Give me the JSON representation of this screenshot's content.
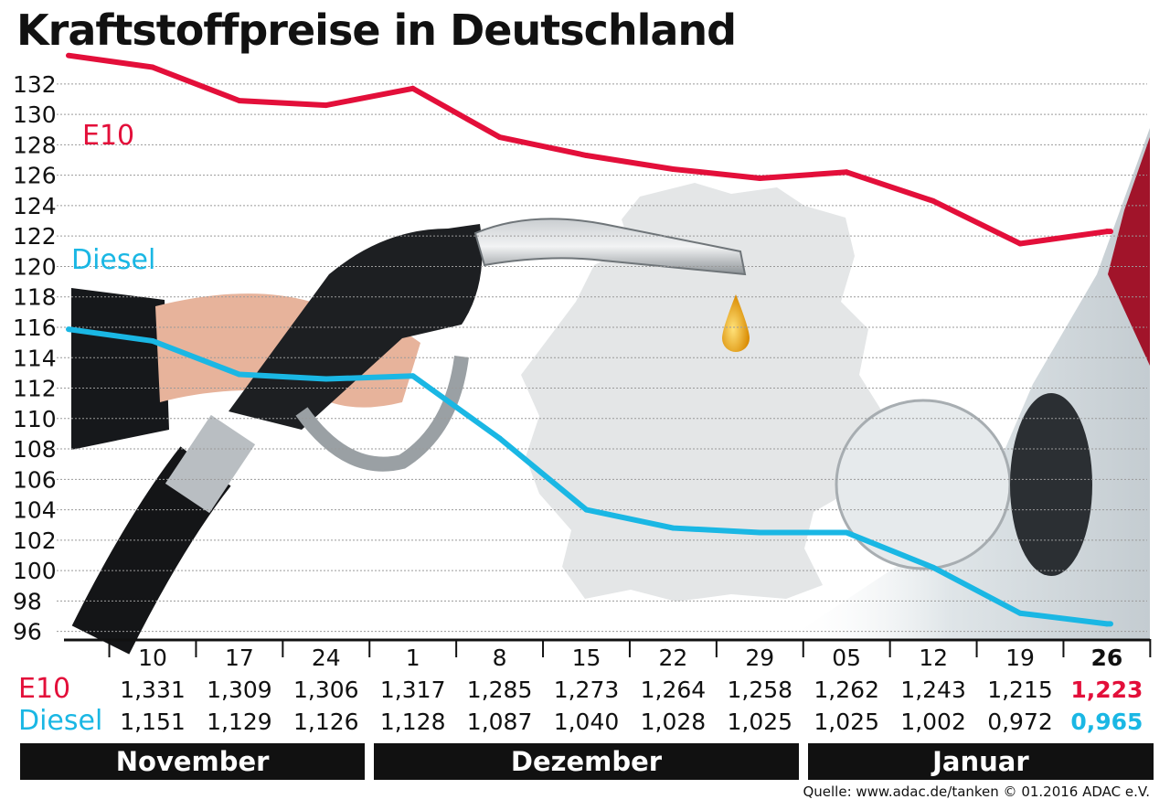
{
  "chart_data": {
    "type": "line",
    "title": "Kraftstoffpreise in Deutschland",
    "y_ticks": [
      "132",
      "130",
      "128",
      "126",
      "124",
      "122",
      "120",
      "118",
      "116",
      "114",
      "112",
      "110",
      "108",
      "106",
      "104",
      "102",
      "100",
      "98",
      "96"
    ],
    "ylim": [
      95.5,
      132.5
    ],
    "x": [
      "10",
      "17",
      "24",
      "1",
      "8",
      "15",
      "22",
      "29",
      "05",
      "12",
      "19",
      "26"
    ],
    "months": [
      {
        "label": "November",
        "span": 3
      },
      {
        "label": "Dezember",
        "span": 5
      },
      {
        "label": "Januar",
        "span": 4
      }
    ],
    "series": [
      {
        "name": "E10",
        "color": "#e30f3a",
        "values": [
          133.1,
          130.9,
          130.6,
          131.7,
          128.5,
          127.3,
          126.4,
          125.8,
          126.2,
          124.3,
          121.5,
          122.3
        ],
        "row": [
          "1,331",
          "1,309",
          "1,306",
          "1,317",
          "1,285",
          "1,273",
          "1,264",
          "1,258",
          "1,262",
          "1,243",
          "1,215",
          "1,223"
        ],
        "highlight_last": true
      },
      {
        "name": "Diesel",
        "color": "#1ab7e4",
        "values": [
          115.1,
          112.9,
          112.6,
          112.8,
          108.7,
          104.0,
          102.8,
          102.5,
          102.5,
          100.2,
          97.2,
          96.5
        ],
        "row": [
          "1,151",
          "1,129",
          "1,126",
          "1,128",
          "1,087",
          "1,040",
          "1,028",
          "1,025",
          "1,025",
          "1,002",
          "0,972",
          "0,965"
        ],
        "highlight_last": true
      }
    ],
    "grid": true
  },
  "source": "Quelle: www.adac.de/tanken   © 01.2016  ADAC e.V."
}
